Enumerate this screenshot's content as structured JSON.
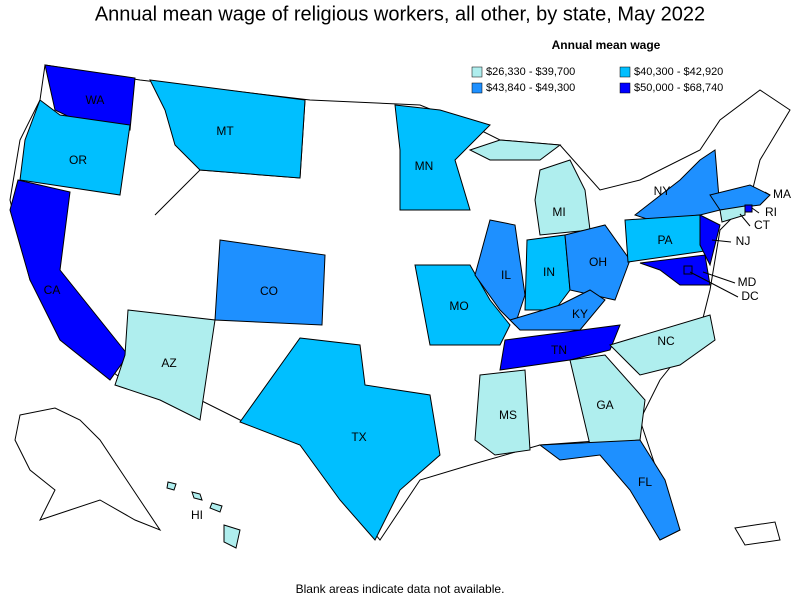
{
  "chart_data": {
    "type": "choropleth",
    "title": "Annual mean wage of religious workers, all other, by state, May 2022",
    "legend_title": "Annual mean wage",
    "legend": [
      {
        "label": "$26,330 - $39,700",
        "color": "#afeeee"
      },
      {
        "label": "$40,300 - $42,920",
        "color": "#00bfff"
      },
      {
        "label": "$43,840 - $49,300",
        "color": "#1e90ff"
      },
      {
        "label": "$50,000 - $68,740",
        "color": "#0000ff"
      }
    ],
    "states": [
      {
        "label": "WA",
        "color": "#0000ff"
      },
      {
        "label": "OR",
        "color": "#00bfff"
      },
      {
        "label": "CA",
        "color": "#0000ff"
      },
      {
        "label": "MT",
        "color": "#00bfff"
      },
      {
        "label": "MN",
        "color": "#00bfff"
      },
      {
        "label": "CO",
        "color": "#1e90ff"
      },
      {
        "label": "AZ",
        "color": "#afeeee"
      },
      {
        "label": "TX",
        "color": "#00bfff"
      },
      {
        "label": "MO",
        "color": "#00bfff"
      },
      {
        "label": "IL",
        "color": "#1e90ff"
      },
      {
        "label": "IN",
        "color": "#00bfff"
      },
      {
        "label": "MI",
        "color": "#afeeee"
      },
      {
        "label": "OH",
        "color": "#1e90ff"
      },
      {
        "label": "KY",
        "color": "#1e90ff"
      },
      {
        "label": "TN",
        "color": "#0000ff"
      },
      {
        "label": "MS",
        "color": "#afeeee"
      },
      {
        "label": "GA",
        "color": "#afeeee"
      },
      {
        "label": "FL",
        "color": "#1e90ff"
      },
      {
        "label": "NC",
        "color": "#afeeee"
      },
      {
        "label": "NY",
        "color": "#1e90ff"
      },
      {
        "label": "PA",
        "color": "#00bfff"
      },
      {
        "label": "NJ",
        "color": "#0000ff"
      },
      {
        "label": "MD",
        "color": "#0000ff"
      },
      {
        "label": "DC",
        "color": "#0000ff"
      },
      {
        "label": "MA",
        "color": "#1e90ff"
      },
      {
        "label": "RI",
        "color": "#0000ff"
      },
      {
        "label": "CT",
        "color": "#afeeee"
      },
      {
        "label": "HI",
        "color": "#afeeee"
      }
    ],
    "footnote": "Blank areas indicate data not available."
  }
}
